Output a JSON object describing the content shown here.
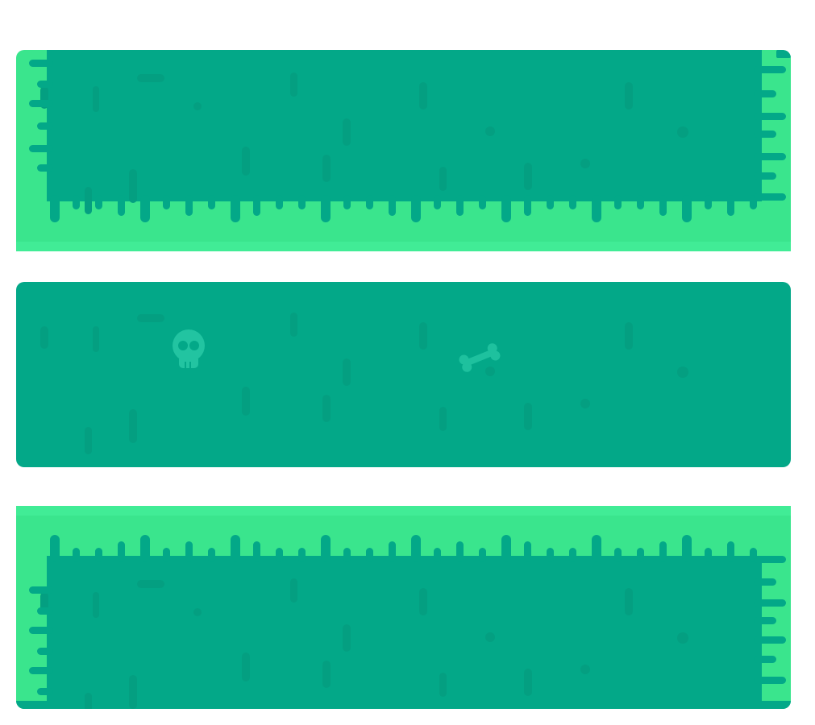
{
  "colors": {
    "background": "#ffffff",
    "teal": "#03a888",
    "teal_speck": "#049f81",
    "slime": "#3ae58d",
    "slime_light": "#41ec96",
    "bone_icon": "#1ec19e",
    "skull_icon": "#22c4a1"
  },
  "panels": [
    {
      "id": "top",
      "slime_edges": [
        "left",
        "right",
        "bottom"
      ],
      "icons": []
    },
    {
      "id": "middle",
      "slime_edges": [],
      "icons": [
        "skull-icon",
        "bone-icon"
      ]
    },
    {
      "id": "bottom",
      "slime_edges": [
        "left",
        "right",
        "top"
      ],
      "icons": []
    }
  ]
}
